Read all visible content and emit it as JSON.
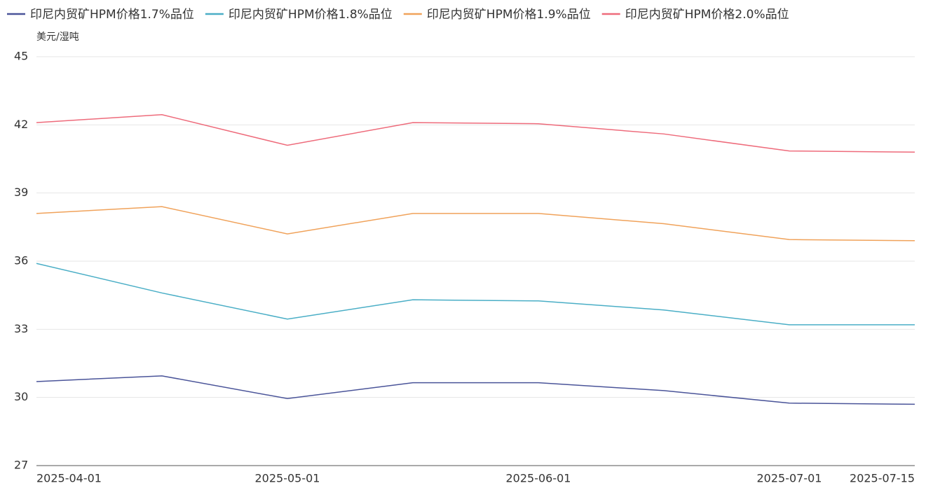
{
  "chart_data": {
    "type": "line",
    "y_label": "美元/湿吨",
    "categories": [
      "2025-04-01",
      null,
      "2025-05-01",
      null,
      "2025-06-01",
      null,
      "2025-07-01",
      "2025-07-15"
    ],
    "series": [
      {
        "name": "印尼内贸矿HPM价格1.7%品位",
        "color": "#4a5499",
        "values": [
          30.7,
          30.95,
          29.95,
          30.65,
          30.65,
          30.3,
          29.75,
          29.7
        ]
      },
      {
        "name": "印尼内贸矿HPM价格1.8%品位",
        "color": "#4aaec6",
        "values": [
          35.9,
          34.6,
          33.45,
          34.3,
          34.25,
          33.85,
          33.2,
          33.2
        ]
      },
      {
        "name": "印尼内贸矿HPM价格1.9%品位",
        "color": "#f0a25a",
        "values": [
          38.1,
          38.4,
          37.2,
          38.1,
          38.1,
          37.65,
          36.95,
          36.9
        ]
      },
      {
        "name": "印尼内贸矿HPM价格2.0%品位",
        "color": "#ee6b7b",
        "values": [
          42.1,
          42.45,
          41.1,
          42.1,
          42.05,
          41.6,
          40.85,
          40.8
        ]
      }
    ],
    "ylim": [
      27,
      45
    ],
    "yticks": [
      27,
      30,
      33,
      36,
      39,
      42,
      45
    ],
    "grid": true
  }
}
